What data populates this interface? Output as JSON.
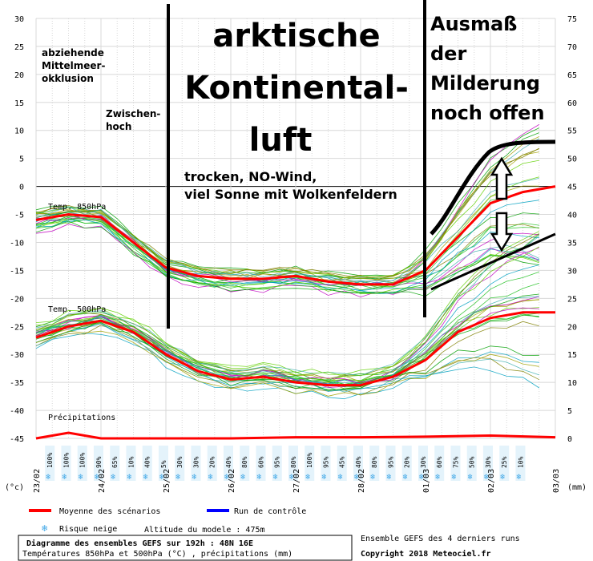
{
  "chart_data": {
    "type": "line",
    "title": "Diagramme des ensembles GEFS sur 192h : 48N 16E",
    "subtitle": "Températures 850hPa et 500hPa (°C) , précipitations (mm)",
    "left_unit": "(°c)",
    "right_unit": "(mm)",
    "ylim_left": [
      -45,
      30
    ],
    "ylim_right": [
      0,
      75
    ],
    "left_ticks": [
      "30",
      "25",
      "20",
      "15",
      "10",
      "5",
      "0",
      "-5",
      "-10",
      "-15",
      "-20",
      "-25",
      "-30",
      "-35",
      "-40",
      "-45"
    ],
    "right_ticks": [
      "75",
      "70",
      "65",
      "60",
      "55",
      "50",
      "45",
      "40",
      "35",
      "30",
      "25",
      "20",
      "15",
      "10",
      "5",
      "0"
    ],
    "x": [
      "23/02",
      "24/02",
      "25/02",
      "26/02",
      "27/02",
      "28/02",
      "01/03",
      "02/03",
      "03/03"
    ],
    "grid": true,
    "panel_labels": {
      "t850": "Temp. 850hPa",
      "t500": "Temp. 500hPa",
      "precip": "Précipitations"
    },
    "snow_risk": [
      "100%",
      "100%",
      "100%",
      "90%",
      "65%",
      "10%",
      "40%",
      "5%",
      "30%",
      "30%",
      "20%",
      "40%",
      "80%",
      "60%",
      "95%",
      "80%",
      "100%",
      "95%",
      "45%",
      "40%",
      "80%",
      "95%",
      "20%",
      "30%",
      "60%",
      "75%",
      "50%",
      "30%",
      "25%",
      "10%"
    ],
    "series": [
      {
        "name": "Moyenne des scénarios",
        "color": "#ff0000",
        "group": "t850",
        "x": [
          0,
          0.5,
          1,
          1.5,
          2,
          2.5,
          3,
          3.5,
          4,
          4.5,
          5,
          5.5,
          6,
          6.5,
          7,
          7.5,
          8
        ],
        "values": [
          -6,
          -5,
          -5.5,
          -10,
          -14.5,
          -16,
          -16.5,
          -16.5,
          -16,
          -17,
          -17.5,
          -17.5,
          -15,
          -9,
          -3,
          -1,
          0
        ]
      },
      {
        "name": "Moyenne des scénarios",
        "color": "#ff0000",
        "group": "t500",
        "x": [
          0,
          0.5,
          1,
          1.5,
          2,
          2.5,
          3,
          3.5,
          4,
          4.5,
          5,
          5.5,
          6,
          6.5,
          7,
          7.5,
          8
        ],
        "values": [
          -27,
          -25,
          -24,
          -26,
          -30,
          -33,
          -34.5,
          -34,
          -35,
          -35.5,
          -35.5,
          -34,
          -31,
          -26,
          -23.5,
          -22.5,
          -22.5
        ]
      },
      {
        "name": "Moyenne des scénarios",
        "color": "#ff0000",
        "group": "precip",
        "x": [
          0,
          0.5,
          1,
          2,
          3,
          4,
          5,
          6,
          7,
          8
        ],
        "values": [
          0,
          1,
          0,
          0,
          0,
          0.2,
          0.2,
          0.3,
          0.5,
          0.2
        ]
      }
    ],
    "legend": [
      {
        "label": "Moyenne des scénarios",
        "color": "#ff0000"
      },
      {
        "label": "Run de contrôle",
        "color": "#0000ff"
      },
      {
        "label": "Risque neige",
        "icon": "snowflake-icon"
      }
    ],
    "model_altitude": "Altitude du modele : 475m",
    "ensemble_note": "Ensemble GEFS des 4 derniers runs",
    "copyright": "Copyright 2018 Meteociel.fr",
    "annotations": [
      {
        "text": "abziehende\nMittelmeer-\nokklusion"
      },
      {
        "text": "Zwischen-\nhoch"
      },
      {
        "text": "arktische\nKontinental-\nluft"
      },
      {
        "text": "trocken, NO-Wind,\nviel Sonne mit Wolkenfeldern"
      },
      {
        "text": "Ausmaß\nder\nMilderung\nnoch offen"
      }
    ]
  }
}
